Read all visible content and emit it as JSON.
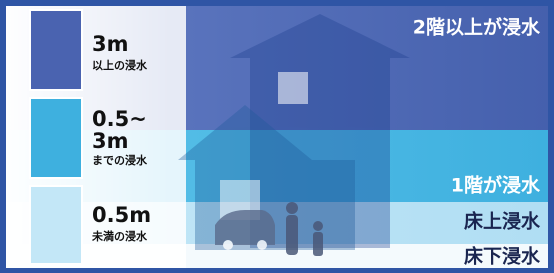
{
  "legend": [
    {
      "depth": [
        "3m"
      ],
      "desc": "以上の浸水"
    },
    {
      "depth": [
        "0.5~",
        "3m"
      ],
      "desc": "までの浸水"
    },
    {
      "depth": [
        "0.5m"
      ],
      "desc": "未満の浸水"
    }
  ],
  "levels": [
    "2階以上が浸水",
    "1階が浸水",
    "床上浸水",
    "床下浸水"
  ]
}
